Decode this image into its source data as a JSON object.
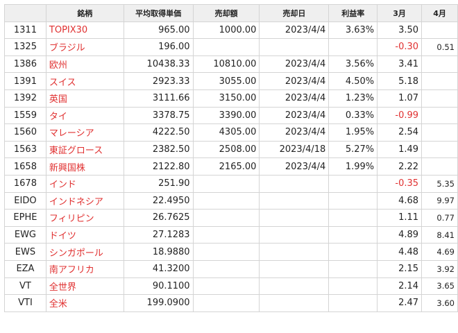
{
  "headers": [
    "",
    "銘柄",
    "平均取得単価",
    "売却額",
    "売却日",
    "利益率",
    "3月",
    "4月"
  ],
  "rows": [
    {
      "code": "1311",
      "name": "TOPIX30",
      "avg": "965.00",
      "sale": "1000.00",
      "date": "2023/4/4",
      "profit": "3.63%",
      "m3": "3.50",
      "m4": "",
      "m3_neg": false
    },
    {
      "code": "1325",
      "name": "ブラジル",
      "avg": "196.00",
      "sale": "",
      "date": "",
      "profit": "",
      "m3": "-0.30",
      "m4": "0.51",
      "m3_neg": true
    },
    {
      "code": "1386",
      "name": "欧州",
      "avg": "10438.33",
      "sale": "10810.00",
      "date": "2023/4/4",
      "profit": "3.56%",
      "m3": "3.41",
      "m4": "",
      "m3_neg": false
    },
    {
      "code": "1391",
      "name": "スイス",
      "avg": "2923.33",
      "sale": "3055.00",
      "date": "2023/4/4",
      "profit": "4.50%",
      "m3": "5.18",
      "m4": "",
      "m3_neg": false
    },
    {
      "code": "1392",
      "name": "英国",
      "avg": "3111.66",
      "sale": "3150.00",
      "date": "2023/4/4",
      "profit": "1.23%",
      "m3": "1.07",
      "m4": "",
      "m3_neg": false
    },
    {
      "code": "1559",
      "name": "タイ",
      "avg": "3378.75",
      "sale": "3390.00",
      "date": "2023/4/4",
      "profit": "0.33%",
      "m3": "-0.99",
      "m4": "",
      "m3_neg": true
    },
    {
      "code": "1560",
      "name": "マレーシア",
      "avg": "4222.50",
      "sale": "4305.00",
      "date": "2023/4/4",
      "profit": "1.95%",
      "m3": "2.54",
      "m4": "",
      "m3_neg": false
    },
    {
      "code": "1563",
      "name": "東証グロース",
      "avg": "2382.50",
      "sale": "2508.00",
      "date": "2023/4/18",
      "profit": "5.27%",
      "m3": "1.49",
      "m4": "",
      "m3_neg": false
    },
    {
      "code": "1658",
      "name": "新興国株",
      "avg": "2122.80",
      "sale": "2165.00",
      "date": "2023/4/4",
      "profit": "1.99%",
      "m3": "2.22",
      "m4": "",
      "m3_neg": false
    },
    {
      "code": "1678",
      "name": "インド",
      "avg": "251.90",
      "sale": "",
      "date": "",
      "profit": "",
      "m3": "-0.35",
      "m4": "5.35",
      "m3_neg": true
    },
    {
      "code": "EIDO",
      "name": "インドネシア",
      "avg": "22.4950",
      "sale": "",
      "date": "",
      "profit": "",
      "m3": "4.68",
      "m4": "9.97",
      "m3_neg": false
    },
    {
      "code": "EPHE",
      "name": "フィリピン",
      "avg": "26.7625",
      "sale": "",
      "date": "",
      "profit": "",
      "m3": "1.11",
      "m4": "0.77",
      "m3_neg": false
    },
    {
      "code": "EWG",
      "name": "ドイツ",
      "avg": "27.1283",
      "sale": "",
      "date": "",
      "profit": "",
      "m3": "4.89",
      "m4": "8.41",
      "m3_neg": false
    },
    {
      "code": "EWS",
      "name": "シンガポール",
      "avg": "18.9880",
      "sale": "",
      "date": "",
      "profit": "",
      "m3": "4.48",
      "m4": "4.69",
      "m3_neg": false
    },
    {
      "code": "EZA",
      "name": "南アフリカ",
      "avg": "41.3200",
      "sale": "",
      "date": "",
      "profit": "",
      "m3": "2.15",
      "m4": "3.92",
      "m3_neg": false
    },
    {
      "code": "VT",
      "name": "全世界",
      "avg": "90.1100",
      "sale": "",
      "date": "",
      "profit": "",
      "m3": "2.14",
      "m4": "3.65",
      "m3_neg": false
    },
    {
      "code": "VTI",
      "name": "全米",
      "avg": "199.0900",
      "sale": "",
      "date": "",
      "profit": "",
      "m3": "2.47",
      "m4": "3.60",
      "m3_neg": false
    }
  ]
}
